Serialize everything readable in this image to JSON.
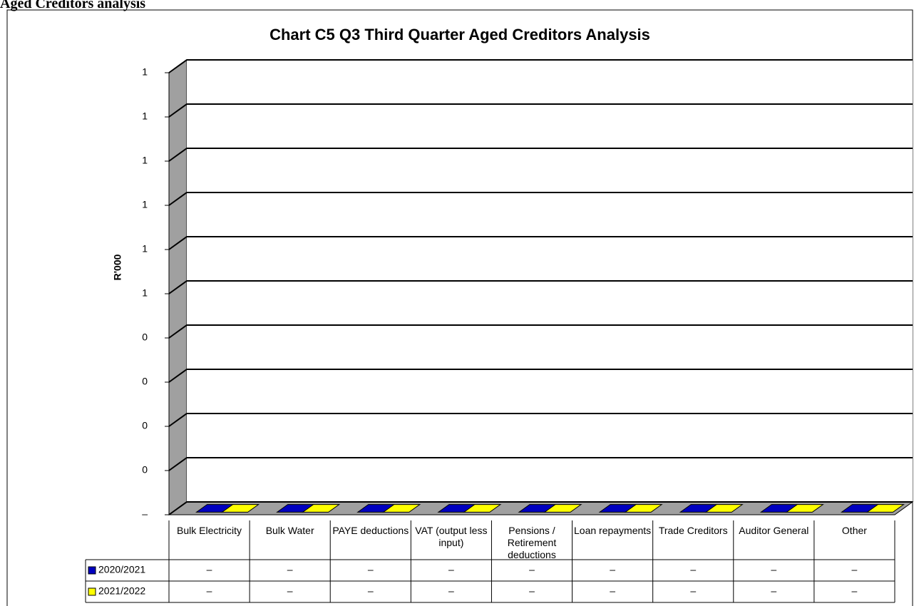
{
  "header": {
    "title": "Aged Creditors analysis"
  },
  "chart_data": {
    "type": "bar3d",
    "title": "Chart C5 Q3 Third Quarter Aged Creditors Analysis",
    "y_label": "R'000",
    "categories": [
      "Bulk Electricity",
      "Bulk Water",
      "PAYE deductions",
      "VAT (output less input)",
      "Pensions / Retirement deductions",
      "Loan repayments",
      "Trade Creditors",
      "Auditor General",
      "Other"
    ],
    "series": [
      {
        "name": "2020/2021",
        "color": "#0000c0",
        "values": [
          0,
          0,
          0,
          0,
          0,
          0,
          0,
          0,
          0
        ],
        "value_labels": [
          "–",
          "–",
          "–",
          "–",
          "–",
          "–",
          "–",
          "–",
          "–"
        ]
      },
      {
        "name": "2021/2022",
        "color": "#ffff00",
        "values": [
          0,
          0,
          0,
          0,
          0,
          0,
          0,
          0,
          0
        ],
        "value_labels": [
          "–",
          "–",
          "–",
          "–",
          "–",
          "–",
          "–",
          "–",
          "–"
        ]
      }
    ],
    "ylim": [
      0,
      1
    ],
    "yticks": [
      {
        "value": 0,
        "label": "–"
      },
      {
        "value": 0.1,
        "label": "0"
      },
      {
        "value": 0.2,
        "label": "0"
      },
      {
        "value": 0.3,
        "label": "0"
      },
      {
        "value": 0.4,
        "label": "0"
      },
      {
        "value": 0.5,
        "label": "1"
      },
      {
        "value": 0.6,
        "label": "1"
      },
      {
        "value": 0.7,
        "label": "1"
      },
      {
        "value": 0.8,
        "label": "1"
      },
      {
        "value": 0.9,
        "label": "1"
      },
      {
        "value": 1,
        "label": "1"
      }
    ],
    "grid": true
  }
}
